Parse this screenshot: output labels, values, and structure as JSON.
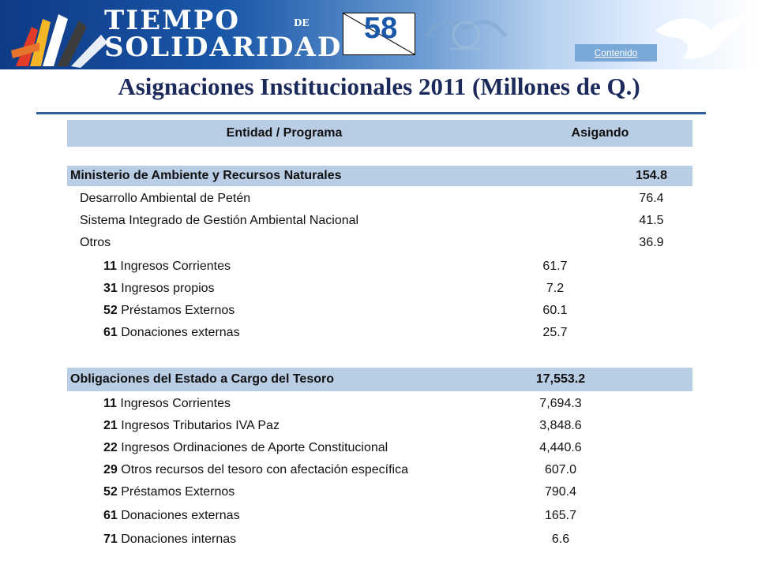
{
  "header": {
    "brand_top": "TIEMPO",
    "brand_de": "DE",
    "brand_bottom": "SOLIDARIDAD",
    "slide_number": "58",
    "contenido_link": "Contenido"
  },
  "title": "Asignaciones Institucionales 2011 (Millones de Q.)",
  "table": {
    "header": {
      "entity": "Entidad / Programa",
      "assigned": "Asigando"
    },
    "ministerio": {
      "name": "Ministerio de Ambiente y Recursos Naturales",
      "total": "154.8",
      "programs": [
        {
          "name": "Desarrollo Ambiental de Petén",
          "value": "76.4"
        },
        {
          "name": "Sistema Integrado de Gestión Ambiental Nacional",
          "value": "41.5"
        },
        {
          "name": "Otros",
          "value": "36.9"
        }
      ],
      "sources": [
        {
          "code": "11",
          "name": "Ingresos Corrientes",
          "value": "61.7"
        },
        {
          "code": "31",
          "name": "Ingresos propios",
          "value": "7.2"
        },
        {
          "code": "52",
          "name": "Préstamos Externos",
          "value": "60.1"
        },
        {
          "code": "61",
          "name": "Donaciones externas",
          "value": "25.7"
        }
      ]
    },
    "obligaciones": {
      "name": "Obligaciones del Estado a Cargo del Tesoro",
      "total": "17,553.2",
      "sources": [
        {
          "code": "11",
          "name": "Ingresos Corrientes",
          "value": "7,694.3"
        },
        {
          "code": "21",
          "name": "Ingresos Tributarios IVA Paz",
          "value": "3,848.6"
        },
        {
          "code": "22",
          "name": "Ingresos Ordinaciones de Aporte Constitucional",
          "value": "4,440.6"
        },
        {
          "code": "29",
          "name": "Otros recursos del tesoro con afectación específica",
          "value": "607.0"
        },
        {
          "code": "52",
          "name": "Préstamos Externos",
          "value": "790.4"
        },
        {
          "code": "61",
          "name": "Donaciones externas",
          "value": "165.7"
        },
        {
          "code": "71",
          "name": "Donaciones internas",
          "value": "6.6"
        }
      ]
    }
  }
}
